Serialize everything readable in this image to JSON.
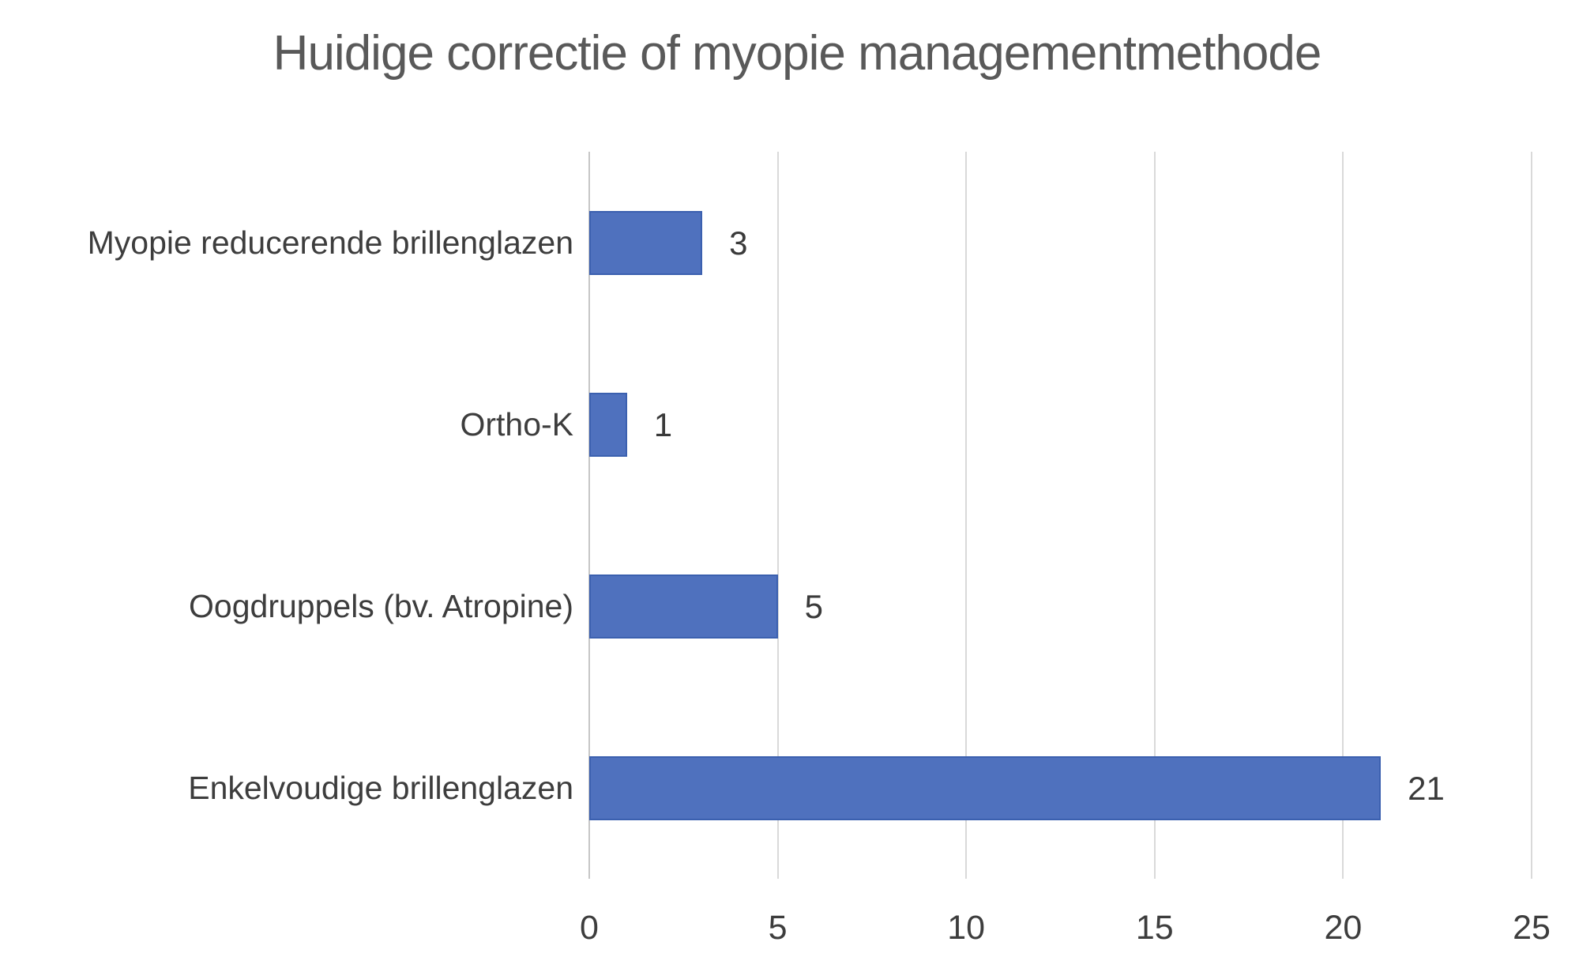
{
  "chart_data": {
    "type": "bar",
    "orientation": "horizontal",
    "title": "Huidige correctie of myopie managementmethode",
    "categories": [
      "Myopie reducerende brillenglazen",
      "Ortho-K",
      "Oogdruppels (bv. Atropine)",
      "Enkelvoudige brillenglazen"
    ],
    "values": [
      3,
      1,
      5,
      21
    ],
    "xticks": [
      0,
      5,
      10,
      15,
      20,
      25
    ],
    "xlim": [
      0,
      25
    ],
    "grid": "vertical-only",
    "legend": "none",
    "xlabel": "",
    "ylabel": "",
    "colors": {
      "bar_fill": "#4F71BE",
      "bar_border": "#3B60AF",
      "gridline": "#D9D9D9",
      "axis_line": "#C6C6C6",
      "title_text": "#595959",
      "label_text": "#3D3D3D",
      "value_text": "#3A3A3A",
      "background": "#FFFFFF"
    }
  }
}
